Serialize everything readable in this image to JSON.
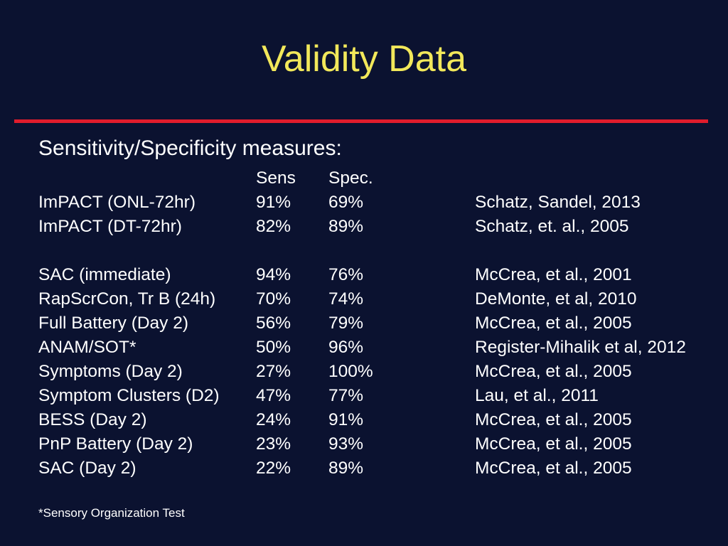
{
  "slide": {
    "title": "Validity Data",
    "subtitle": "Sensitivity/Specificity measures:",
    "accent_color": "#e01c2c",
    "title_color": "#f2e85a",
    "background_color": "#0b1230"
  },
  "table": {
    "headers": {
      "name": "",
      "sens": "Sens",
      "spec": "Spec.",
      "ref": ""
    },
    "group1": [
      {
        "name": "ImPACT (ONL-72hr)",
        "sens": "91%",
        "spec": "69%",
        "ref": "Schatz, Sandel, 2013"
      },
      {
        "name": "ImPACT (DT-72hr)",
        "sens": "82%",
        "spec": "89%",
        "ref": "Schatz, et. al., 2005"
      }
    ],
    "group2": [
      {
        "name": "SAC (immediate)",
        "sens": "94%",
        "spec": "76%",
        "ref": "McCrea, et al., 2001"
      },
      {
        "name": "RapScrCon, Tr B (24h)",
        "sens": "70%",
        "spec": "74%",
        "ref": "DeMonte, et al, 2010"
      },
      {
        "name": "Full Battery (Day 2)",
        "sens": "56%",
        "spec": "79%",
        "ref": "McCrea, et al., 2005"
      },
      {
        "name": "ANAM/SOT*",
        "sens": "50%",
        "spec": "96%",
        "ref": "Register-Mihalik et al, 2012"
      },
      {
        "name": "Symptoms (Day 2)",
        "sens": "27%",
        "spec": "100%",
        "ref": "McCrea, et al., 2005"
      },
      {
        "name": "Symptom Clusters (D2)",
        "sens": "47%",
        "spec": "77%",
        "ref": "Lau, et al., 2011"
      },
      {
        "name": "BESS (Day 2)",
        "sens": "24%",
        "spec": "91%",
        "ref": "McCrea, et al., 2005"
      },
      {
        "name": "PnP Battery (Day 2)",
        "sens": "23%",
        "spec": "93%",
        "ref": "McCrea, et al., 2005"
      },
      {
        "name": "SAC (Day 2)",
        "sens": "22%",
        "spec": "89%",
        "ref": "McCrea, et al., 2005"
      }
    ]
  },
  "footnote": "*Sensory Organization Test"
}
